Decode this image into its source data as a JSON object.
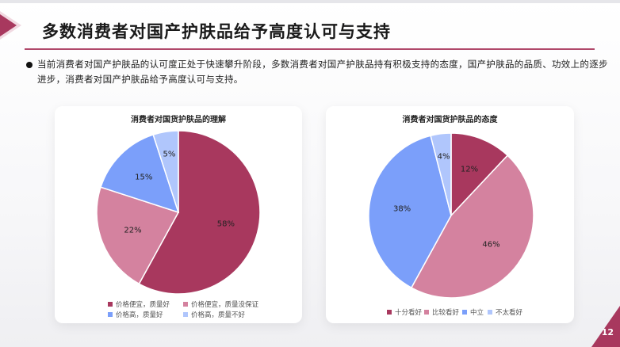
{
  "slide": {
    "title": "多数消费者对国产护肤品给予高度认可与支持",
    "body": "当前消费者对国产护肤品的认可度正处于快速攀升阶段，多数消费者对国产护肤品持有积极支持的态度，国产护肤品的品质、功效上的逐步进步，消费者对国产护肤品给予高度认可与支持。",
    "page_number": "12",
    "accent_color": "#a8385e"
  },
  "chart_data": [
    {
      "type": "pie",
      "title": "消费者对国货护肤品的理解",
      "categories": [
        "价格便宜，质量好",
        "价格便宜，质量没保证",
        "价格高，质量好",
        "价格高，质量不好"
      ],
      "values": [
        58,
        22,
        15,
        5
      ],
      "labels": [
        "58%",
        "22%",
        "15%",
        "5%"
      ],
      "colors": [
        "#a8385e",
        "#d4829f",
        "#7b9ffa",
        "#b0c6fc"
      ],
      "legend_position": "bottom"
    },
    {
      "type": "pie",
      "title": "消费者对国货护肤品的态度",
      "categories": [
        "十分看好",
        "比较看好",
        "中立",
        "不太看好"
      ],
      "values": [
        12,
        46,
        38,
        4
      ],
      "labels": [
        "12%",
        "46%",
        "38%",
        "4%"
      ],
      "colors": [
        "#a8385e",
        "#d4829f",
        "#7b9ffa",
        "#b0c6fc"
      ],
      "legend_position": "bottom"
    }
  ]
}
